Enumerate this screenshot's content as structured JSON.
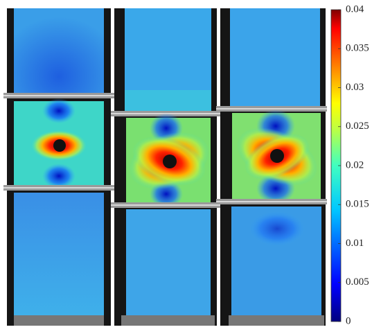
{
  "colorbar": {
    "lim": [
      0,
      0.04
    ],
    "ticks": [
      0,
      0.005,
      0.01,
      0.015,
      0.02,
      0.025,
      0.03,
      0.035,
      0.04
    ]
  }
}
